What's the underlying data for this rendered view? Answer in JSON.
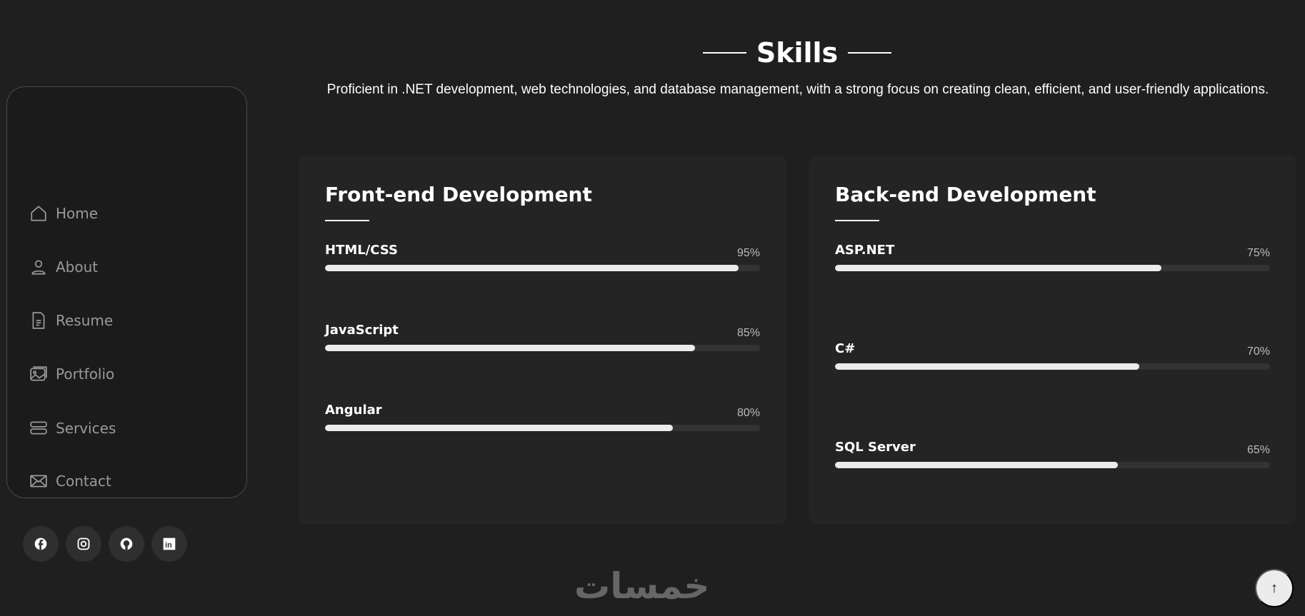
{
  "sidebar": {
    "items": [
      {
        "label": "Home",
        "icon": "home-icon"
      },
      {
        "label": "About",
        "icon": "user-icon"
      },
      {
        "label": "Resume",
        "icon": "document-icon"
      },
      {
        "label": "Portfolio",
        "icon": "images-icon"
      },
      {
        "label": "Services",
        "icon": "server-icon"
      },
      {
        "label": "Contact",
        "icon": "envelope-icon"
      }
    ],
    "social": [
      "facebook",
      "instagram",
      "github",
      "linkedin"
    ]
  },
  "section": {
    "title": "Skills",
    "subtitle": "Proficient in .NET development, web technologies, and database management, with a strong focus on creating clean, efficient, and user-friendly applications."
  },
  "cards": [
    {
      "title": "Front-end Development",
      "skills": [
        {
          "name": "HTML/CSS",
          "percent_label": "95%",
          "value": 95
        },
        {
          "name": "JavaScript",
          "percent_label": "85%",
          "value": 85
        },
        {
          "name": "Angular",
          "percent_label": "80%",
          "value": 80
        }
      ]
    },
    {
      "title": "Back-end Development",
      "skills": [
        {
          "name": "ASP.NET",
          "percent_label": "75%",
          "value": 75
        },
        {
          "name": "C#",
          "percent_label": "70%",
          "value": 70
        },
        {
          "name": "SQL Server",
          "percent_label": "65%",
          "value": 65
        }
      ]
    }
  ],
  "footer": {
    "logo": "خمسات"
  },
  "scroll_top": {
    "icon": "arrow-up-icon",
    "label": "↑"
  },
  "colors": {
    "background": "#1f1f1f",
    "card": "#242424",
    "bar_fill": "#ececec",
    "bar_track": "#333333"
  }
}
